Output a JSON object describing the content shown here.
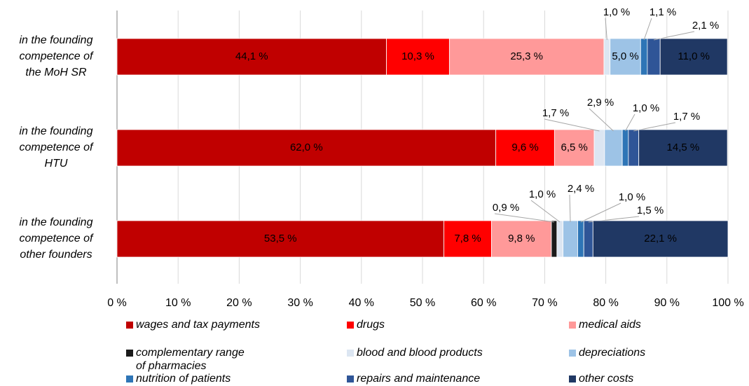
{
  "chart_data": {
    "type": "stacked-barh",
    "categories": [
      "in the founding competence of the MoH SR",
      "in the founding competence of HTU",
      "in the founding competence of other founders"
    ],
    "series": [
      {
        "name": "wages and tax payments",
        "color": "#c00000",
        "values": [
          44.1,
          62.0,
          53.5
        ],
        "value_labels": [
          "44,1 %",
          "62,0 %",
          "53,5 %"
        ]
      },
      {
        "name": "drugs",
        "color": "#ff0000",
        "values": [
          10.3,
          9.6,
          7.8
        ],
        "value_labels": [
          "10,3 %",
          "9,6 %",
          "7,8 %"
        ]
      },
      {
        "name": "medical aids",
        "color": "#ff9999",
        "values": [
          25.3,
          6.5,
          9.8
        ],
        "value_labels": [
          "25,3 %",
          "6,5 %",
          "9,8 %"
        ]
      },
      {
        "name": "complementary range of pharmacies",
        "color": "#1a1a1a",
        "values": [
          null,
          null,
          0.9
        ],
        "value_labels": [
          null,
          null,
          "0,9 %"
        ]
      },
      {
        "name": "blood and blood products",
        "color": "#dce6f2",
        "values": [
          1.0,
          1.7,
          1.0
        ],
        "value_labels": [
          "1,0 %",
          "1,7 %",
          "1,0 %"
        ]
      },
      {
        "name": "depreciations",
        "color": "#9dc3e6",
        "values": [
          5.0,
          2.9,
          2.4
        ],
        "value_labels": [
          "5,0 %",
          "2,9 %",
          "2,4 %"
        ]
      },
      {
        "name": "nutrition of patients",
        "color": "#2e75b6",
        "values": [
          1.1,
          1.0,
          1.0
        ],
        "value_labels": [
          "1,1 %",
          "1,0 %",
          "1,0 %"
        ]
      },
      {
        "name": "repairs and maintenance",
        "color": "#2f5597",
        "values": [
          2.1,
          1.7,
          1.5
        ],
        "value_labels": [
          "2,1 %",
          "1,7 %",
          "1,5 %"
        ]
      },
      {
        "name": "other costs",
        "color": "#203864",
        "values": [
          11.0,
          14.5,
          22.1
        ],
        "value_labels": [
          "11,0 %",
          "14,5 %",
          "22,1 %"
        ]
      }
    ],
    "xlim": [
      0,
      100
    ],
    "xticks": [
      {
        "value": 0,
        "label": "0 %"
      },
      {
        "value": 10,
        "label": "10 %"
      },
      {
        "value": 20,
        "label": "20 %"
      },
      {
        "value": 30,
        "label": "30 %"
      },
      {
        "value": 40,
        "label": "40 %"
      },
      {
        "value": 50,
        "label": "50 %"
      },
      {
        "value": 60,
        "label": "60 %"
      },
      {
        "value": 70,
        "label": "70 %"
      },
      {
        "value": 80,
        "label": "80 %"
      },
      {
        "value": 90,
        "label": "90 %"
      },
      {
        "value": 100,
        "label": "100 %"
      }
    ],
    "grid": true
  }
}
